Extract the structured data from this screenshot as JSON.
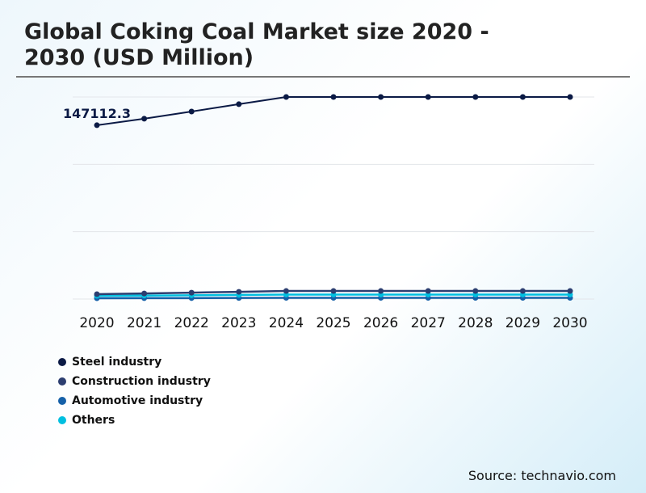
{
  "chart_data": {
    "type": "line",
    "title": "Global Coking Coal Market size 2020 - 2030 (USD Million)",
    "categories": [
      "2020",
      "2021",
      "2022",
      "2023",
      "2024",
      "2025",
      "2026",
      "2027",
      "2028",
      "2029",
      "2030"
    ],
    "ylim": [
      0,
      171000
    ],
    "grid": true,
    "legend_position": "bottom-left",
    "annotation": "147112.3",
    "series": [
      {
        "name": "Steel industry",
        "color": "#0b1a45",
        "values": [
          147112.3,
          152600,
          158700,
          164900,
          171000,
          171000,
          171000,
          171000,
          171000,
          171000,
          171000
        ]
      },
      {
        "name": "Construction industry",
        "color": "#2c3e70",
        "values": [
          4100,
          4700,
          5400,
          6100,
          6800,
          6800,
          6800,
          6800,
          6800,
          6800,
          6800
        ]
      },
      {
        "name": "Automotive industry",
        "color": "#1560a8",
        "values": [
          700,
          750,
          800,
          900,
          1000,
          1000,
          1000,
          1000,
          1000,
          1000,
          1000
        ]
      },
      {
        "name": "Others",
        "color": "#00bfe0",
        "values": [
          2700,
          2900,
          3200,
          3500,
          3800,
          3800,
          3800,
          3800,
          3800,
          3800,
          3800
        ]
      }
    ]
  },
  "source": "Source: technavio.com"
}
